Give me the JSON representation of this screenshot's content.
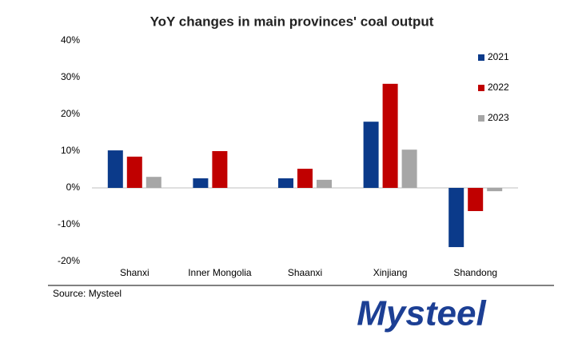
{
  "chart_data": {
    "type": "bar",
    "title": "YoY changes in main provinces' coal output",
    "categories": [
      "Shanxi",
      "Inner Mongolia",
      "Shaanxi",
      "Xinjiang",
      "Shandong"
    ],
    "series": [
      {
        "name": "2021",
        "color": "#0b3a8a",
        "values": [
          10.2,
          2.6,
          2.6,
          18.0,
          -16.1
        ]
      },
      {
        "name": "2022",
        "color": "#c00000",
        "values": [
          8.5,
          10.0,
          5.2,
          28.3,
          -6.3
        ]
      },
      {
        "name": "2023",
        "color": "#a6a6a6",
        "values": [
          3.0,
          null,
          2.2,
          10.4,
          -0.9
        ]
      }
    ],
    "ylim": [
      -20,
      40
    ],
    "yticks": [
      {
        "value": -20,
        "label": "-20%"
      },
      {
        "value": -10,
        "label": "-10%"
      },
      {
        "value": 0,
        "label": "0%"
      },
      {
        "value": 10,
        "label": "10%"
      },
      {
        "value": 20,
        "label": "20%"
      },
      {
        "value": 30,
        "label": "30%"
      },
      {
        "value": 40,
        "label": "40%"
      }
    ],
    "grid": false,
    "legend": "top-right",
    "source": "Source: Mysteel"
  },
  "logo": "Mysteel"
}
